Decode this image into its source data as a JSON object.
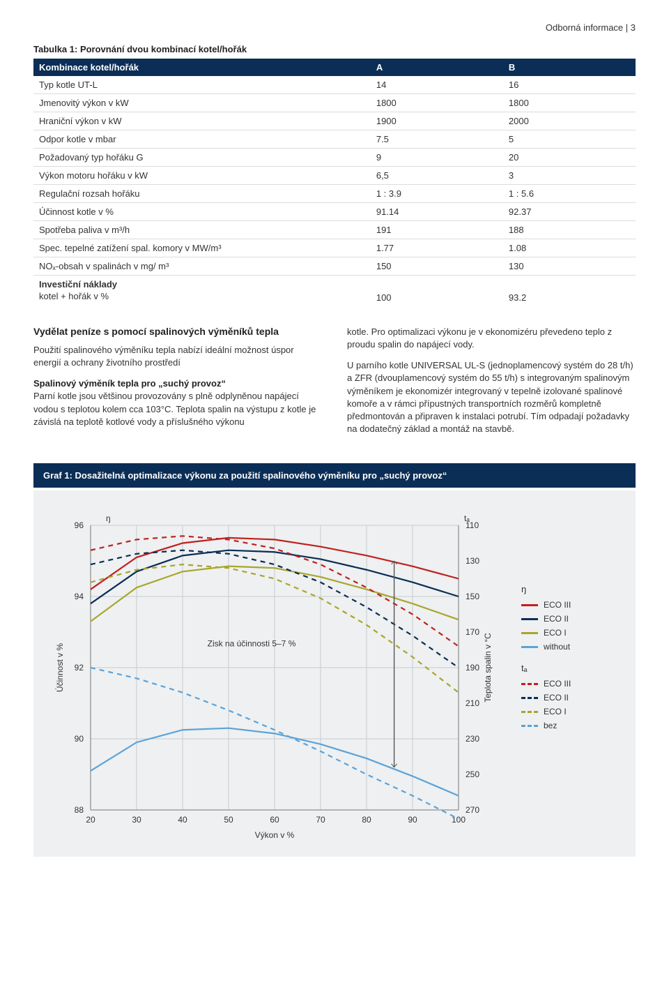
{
  "header": {
    "breadcrumb": "Odborná informace | 3"
  },
  "table": {
    "title": "Tabulka 1: Porovnání dvou kombinací kotel/hořák",
    "columns": [
      "Kombinace kotel/hořák",
      "A",
      "B"
    ],
    "rows": [
      {
        "label": "Typ kotle UT-L",
        "a": "14",
        "b": "16"
      },
      {
        "label": "Jmenovitý výkon v kW",
        "a": "1800",
        "b": "1800"
      },
      {
        "label": "Hraniční výkon v kW",
        "a": "1900",
        "b": "2000"
      },
      {
        "label": "Odpor kotle v mbar",
        "a": "7.5",
        "b": "5"
      },
      {
        "label": "Požadovaný typ hořáku G",
        "a": "9",
        "b": "20"
      },
      {
        "label": "Výkon motoru hořáku v kW",
        "a": "6,5",
        "b": "3"
      },
      {
        "label": "Regulační rozsah hořáku",
        "a": "1 : 3.9",
        "b": "1 : 5.6"
      },
      {
        "label": "Účinnost kotle v %",
        "a": "91.14",
        "b": "92.37"
      },
      {
        "label": "Spotřeba paliva v m³/h",
        "a": "191",
        "b": "188"
      },
      {
        "label": "Spec. tepelné zatížení spal. komory v MW/m³",
        "a": "1.77",
        "b": "1.08"
      },
      {
        "label": "NOₓ-obsah v spalinách v mg/ m³",
        "a": "150",
        "b": "130"
      }
    ],
    "invest": {
      "label1": "Investiční náklady",
      "label2": "kotel + hořák v %",
      "a": "100",
      "b": "93.2"
    }
  },
  "text": {
    "left_heading": "Vydělat peníze s pomocí spalinových výměníků tepla",
    "left_p1": "Použití spalinového výměníku tepla nabízí ideální možnost úspor energií a ochrany životního prostředí",
    "left_mini": "Spalinový výměník tepla pro „suchý provoz“",
    "left_p2": "Parní kotle jsou většinou provozovány s plně odplyněnou napájecí vodou s teplotou kolem cca 103°C. Teplota spalin na výstupu z kotle je závislá na teplotě kotlové vody a příslušného výkonu",
    "right_p1": "kotle. Pro optimalizaci výkonu je v ekonomizéru převedeno teplo z proudu spalin do napájecí vody.",
    "right_p2": "U parního kotle UNIVERSAL UL-S (jednoplamencový systém do 28 t/h) a ZFR (dvouplamencový systém do 55 t/h) s integrovaným spalinovým výměníkem je ekonomizér integrovaný v tepelně izolované spalinové komoře a v rámci přípustných transportních rozměrů kompletně předmontován a připraven k instalaci potrubí. Tím odpadají požadavky na dodatečný základ a montáž na stavbě."
  },
  "chart": {
    "title": "Graf 1: Dosažitelná optimalizace výkonu za použití spalinového výměníku pro „suchý provoz“",
    "annotation": "Zisk na účinnosti 5–7 %",
    "left_axis_top": "ŋ",
    "right_axis_top": "tₐ",
    "x_label": "Výkon v %",
    "y_left_label": "Účinnost v %",
    "y_right_label": "Teplota spalin v °C",
    "x_ticks": [
      20,
      30,
      40,
      50,
      60,
      70,
      80,
      90,
      100
    ],
    "y_left_ticks": [
      88,
      90,
      92,
      94,
      96
    ],
    "y_right_ticks": [
      110,
      130,
      150,
      170,
      190,
      210,
      230,
      250,
      270
    ],
    "xlim": [
      20,
      100
    ],
    "ylim_left": [
      88,
      96
    ],
    "ylim_right": [
      110,
      270
    ],
    "background_color": "#eef0f1",
    "plot_bg": "#eef0f1",
    "grid_color": "#c8cccf",
    "colors": {
      "eco3": "#c02020",
      "eco2": "#0b2e56",
      "eco1": "#a8a62c",
      "without": "#5aa3d8",
      "bez": "#5aa3d8"
    },
    "series_eff": {
      "eco3": [
        [
          20,
          94.2
        ],
        [
          30,
          95.1
        ],
        [
          40,
          95.5
        ],
        [
          50,
          95.65
        ],
        [
          60,
          95.6
        ],
        [
          70,
          95.4
        ],
        [
          80,
          95.15
        ],
        [
          90,
          94.85
        ],
        [
          100,
          94.5
        ]
      ],
      "eco2": [
        [
          20,
          93.8
        ],
        [
          30,
          94.7
        ],
        [
          40,
          95.15
        ],
        [
          50,
          95.3
        ],
        [
          60,
          95.25
        ],
        [
          70,
          95.05
        ],
        [
          80,
          94.75
        ],
        [
          90,
          94.4
        ],
        [
          100,
          94.0
        ]
      ],
      "eco1": [
        [
          20,
          93.3
        ],
        [
          30,
          94.25
        ],
        [
          40,
          94.7
        ],
        [
          50,
          94.85
        ],
        [
          60,
          94.8
        ],
        [
          70,
          94.55
        ],
        [
          80,
          94.2
        ],
        [
          90,
          93.8
        ],
        [
          100,
          93.35
        ]
      ],
      "without": [
        [
          20,
          89.1
        ],
        [
          30,
          89.9
        ],
        [
          40,
          90.25
        ],
        [
          50,
          90.3
        ],
        [
          60,
          90.15
        ],
        [
          70,
          89.85
        ],
        [
          80,
          89.45
        ],
        [
          90,
          88.95
        ],
        [
          100,
          88.4
        ]
      ]
    },
    "series_temp": {
      "eco3": [
        [
          20,
          124
        ],
        [
          30,
          118
        ],
        [
          40,
          116
        ],
        [
          50,
          118
        ],
        [
          60,
          123
        ],
        [
          70,
          132
        ],
        [
          80,
          145
        ],
        [
          90,
          160
        ],
        [
          100,
          178
        ]
      ],
      "eco2": [
        [
          20,
          132
        ],
        [
          30,
          126
        ],
        [
          40,
          124
        ],
        [
          50,
          126
        ],
        [
          60,
          132
        ],
        [
          70,
          142
        ],
        [
          80,
          156
        ],
        [
          90,
          172
        ],
        [
          100,
          190
        ]
      ],
      "eco1": [
        [
          20,
          142
        ],
        [
          30,
          135
        ],
        [
          40,
          132
        ],
        [
          50,
          134
        ],
        [
          60,
          140
        ],
        [
          70,
          151
        ],
        [
          80,
          166
        ],
        [
          90,
          184
        ],
        [
          100,
          204
        ]
      ],
      "bez": [
        [
          20,
          190
        ],
        [
          30,
          196
        ],
        [
          40,
          204
        ],
        [
          50,
          214
        ],
        [
          60,
          225
        ],
        [
          70,
          237
        ],
        [
          80,
          250
        ],
        [
          90,
          262
        ],
        [
          100,
          275
        ]
      ]
    },
    "legend": {
      "title_eff": "ŋ",
      "title_temp": "tₐ",
      "rows_eff": [
        {
          "label": "ECO III",
          "color": "#c02020",
          "style": "solid"
        },
        {
          "label": "ECO II",
          "color": "#0b2e56",
          "style": "solid"
        },
        {
          "label": "ECO I",
          "color": "#a8a62c",
          "style": "solid"
        },
        {
          "label": "without",
          "color": "#5aa3d8",
          "style": "solid"
        }
      ],
      "rows_temp": [
        {
          "label": "ECO III",
          "color": "#c02020",
          "style": "dashed"
        },
        {
          "label": "ECO II",
          "color": "#0b2e56",
          "style": "dashed"
        },
        {
          "label": "ECO I",
          "color": "#a8a62c",
          "style": "dashed"
        },
        {
          "label": "bez",
          "color": "#5aa3d8",
          "style": "dashed"
        }
      ]
    }
  }
}
